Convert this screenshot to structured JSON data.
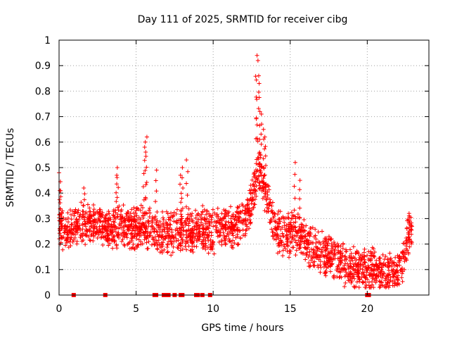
{
  "chart_data": {
    "type": "scatter",
    "title": "Day 111 of 2025, SRMTID for receiver cibg",
    "xlabel": "GPS time / hours",
    "ylabel": "SRMTID / TECUs",
    "xlim": [
      0,
      24
    ],
    "ylim": [
      0,
      1
    ],
    "xticks": [
      0,
      5,
      10,
      15,
      20
    ],
    "xtick_labels": [
      "0",
      "5",
      "10",
      "15",
      "20"
    ],
    "yticks": [
      0,
      0.1,
      0.2,
      0.3,
      0.4,
      0.5,
      0.6,
      0.7,
      0.8,
      0.9,
      1
    ],
    "ytick_labels": [
      "0",
      "0.1",
      "0.2",
      "0.3",
      "0.4",
      "0.5",
      "0.6",
      "0.7",
      "0.8",
      "0.9",
      "1"
    ],
    "grid": true,
    "marker": "+",
    "color": "#ff0000",
    "series": [
      {
        "name": "SRMTID",
        "profile_x": [
          0,
          0.5,
          1,
          1.5,
          2,
          2.5,
          3,
          3.5,
          4,
          4.5,
          5,
          5.5,
          6,
          6.5,
          7,
          7.5,
          8,
          8.5,
          9,
          9.5,
          10,
          10.5,
          11,
          11.5,
          12,
          12.5,
          12.8,
          13,
          13.3,
          13.6,
          14,
          14.5,
          15,
          15.5,
          16,
          16.5,
          17,
          17.5,
          18,
          18.5,
          19,
          19.5,
          20,
          20.5,
          21,
          21.5,
          22,
          22.3,
          22.6,
          22.9
        ],
        "profile_y": [
          0.27,
          0.25,
          0.26,
          0.28,
          0.29,
          0.27,
          0.25,
          0.26,
          0.27,
          0.26,
          0.26,
          0.27,
          0.25,
          0.24,
          0.24,
          0.25,
          0.26,
          0.25,
          0.26,
          0.26,
          0.25,
          0.26,
          0.26,
          0.27,
          0.3,
          0.36,
          0.45,
          0.5,
          0.42,
          0.35,
          0.26,
          0.24,
          0.24,
          0.24,
          0.2,
          0.18,
          0.17,
          0.16,
          0.14,
          0.12,
          0.1,
          0.1,
          0.1,
          0.1,
          0.09,
          0.08,
          0.08,
          0.12,
          0.22,
          0.27
        ],
        "spread": 0.06,
        "extremes_x": [
          0.05,
          0.1,
          1.6,
          3.7,
          3.8,
          5.5,
          5.6,
          5.65,
          6.3,
          7.9,
          8.0,
          8.3,
          12.8,
          12.85,
          12.9,
          13.0,
          13.1,
          13.3,
          13.4,
          15.3,
          15.6,
          19.8,
          22.7
        ],
        "extremes_y": [
          0.48,
          0.41,
          0.42,
          0.47,
          0.5,
          0.58,
          0.6,
          0.62,
          0.49,
          0.47,
          0.5,
          0.53,
          0.94,
          0.92,
          0.86,
          0.83,
          0.71,
          0.65,
          0.62,
          0.52,
          0.45,
          0.18,
          0.32
        ],
        "zero_x": [
          0.95,
          3.0,
          6.2,
          6.3,
          6.8,
          6.9,
          7.0,
          7.1,
          7.5,
          7.9,
          8.0,
          8.9,
          9.0,
          9.3,
          9.8,
          20.0,
          20.1
        ]
      }
    ]
  }
}
